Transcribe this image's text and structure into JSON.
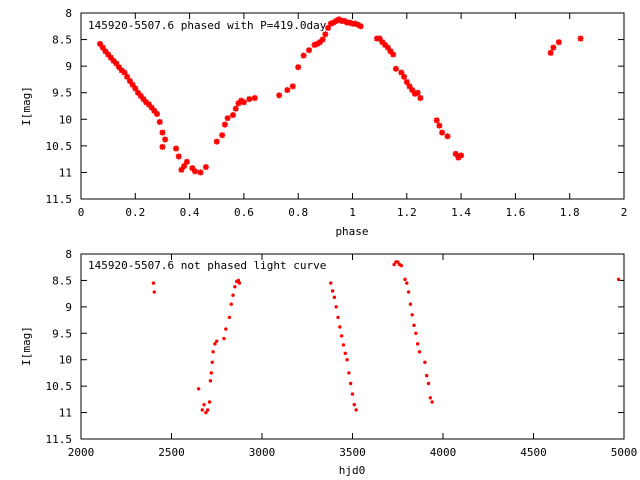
{
  "chart_data": [
    {
      "type": "scatter",
      "title": "145920-5507.6 phased with P=419.0day",
      "xlabel": "phase",
      "ylabel": "I[mag]",
      "xlim": [
        0,
        2
      ],
      "ylim": [
        8,
        11.5
      ],
      "y_inverted": true,
      "grid": false,
      "legend": "none",
      "marker": "star",
      "color": "#ff0000",
      "xticks": [
        "0",
        "0.2",
        "0.4",
        "0.6",
        "0.8",
        "1",
        "1.2",
        "1.4",
        "1.6",
        "1.8",
        "2"
      ],
      "yticks": [
        "8",
        "8.5",
        "9",
        "9.5",
        "10",
        "10.5",
        "11",
        "11.5"
      ],
      "x": [
        0.07,
        0.08,
        0.09,
        0.1,
        0.11,
        0.12,
        0.13,
        0.14,
        0.15,
        0.16,
        0.17,
        0.18,
        0.19,
        0.2,
        0.21,
        0.22,
        0.23,
        0.24,
        0.25,
        0.26,
        0.27,
        0.28,
        0.29,
        0.3,
        0.3,
        0.31,
        0.35,
        0.36,
        0.37,
        0.38,
        0.39,
        0.41,
        0.42,
        0.44,
        0.46,
        0.5,
        0.52,
        0.53,
        0.54,
        0.56,
        0.57,
        0.58,
        0.59,
        0.6,
        0.62,
        0.64,
        0.73,
        0.76,
        0.78,
        0.8,
        0.82,
        0.84,
        0.86,
        0.87,
        0.88,
        0.89,
        0.9,
        0.91,
        0.92,
        0.93,
        0.94,
        0.95,
        0.96,
        0.97,
        0.98,
        0.99,
        1.0,
        1.01,
        1.02,
        1.03,
        1.09,
        1.1,
        1.11,
        1.12,
        1.13,
        1.14,
        1.15,
        1.16,
        1.18,
        1.19,
        1.2,
        1.21,
        1.22,
        1.23,
        1.24,
        1.25,
        1.31,
        1.32,
        1.33,
        1.35,
        1.38,
        1.39,
        1.4,
        1.73,
        1.74,
        1.76,
        1.84
      ],
      "y": [
        8.58,
        8.65,
        8.72,
        8.78,
        8.84,
        8.9,
        8.95,
        9.02,
        9.08,
        9.12,
        9.2,
        9.28,
        9.35,
        9.42,
        9.5,
        9.56,
        9.62,
        9.68,
        9.72,
        9.78,
        9.84,
        9.9,
        10.05,
        10.25,
        10.52,
        10.38,
        10.55,
        10.7,
        10.95,
        10.88,
        10.8,
        10.92,
        10.98,
        11.0,
        10.9,
        10.42,
        10.3,
        10.1,
        9.98,
        9.92,
        9.8,
        9.7,
        9.65,
        9.68,
        9.62,
        9.6,
        9.55,
        9.45,
        9.38,
        9.02,
        8.8,
        8.7,
        8.6,
        8.58,
        8.55,
        8.5,
        8.4,
        8.28,
        8.2,
        8.18,
        8.15,
        8.12,
        8.15,
        8.15,
        8.18,
        8.18,
        8.2,
        8.2,
        8.22,
        8.25,
        8.48,
        8.48,
        8.55,
        8.6,
        8.65,
        8.72,
        8.78,
        9.05,
        9.12,
        9.2,
        9.3,
        9.38,
        9.45,
        9.52,
        9.5,
        9.6,
        10.02,
        10.12,
        10.25,
        10.32,
        10.65,
        10.72,
        10.68,
        8.75,
        8.65,
        8.55,
        8.48
      ]
    },
    {
      "type": "scatter",
      "title": "145920-5507.6 not phased light curve",
      "xlabel": "hjd0",
      "ylabel": "I[mag]",
      "xlim": [
        2000,
        5000
      ],
      "ylim": [
        8,
        11.5
      ],
      "y_inverted": true,
      "grid": false,
      "legend": "none",
      "marker": "dot",
      "color": "#ff0000",
      "xticks": [
        "2000",
        "2500",
        "3000",
        "3500",
        "4000",
        "4500",
        "5000"
      ],
      "yticks": [
        "8",
        "8.5",
        "9",
        "9.5",
        "10",
        "10.5",
        "11",
        "11.5"
      ],
      "x": [
        2400,
        2405,
        2650,
        2670,
        2680,
        2690,
        2700,
        2710,
        2715,
        2720,
        2725,
        2730,
        2740,
        2750,
        2790,
        2800,
        2820,
        2830,
        2840,
        2850,
        2860,
        2870,
        2875,
        3380,
        3390,
        3400,
        3410,
        3420,
        3430,
        3440,
        3450,
        3460,
        3470,
        3480,
        3490,
        3500,
        3510,
        3520,
        3730,
        3740,
        3750,
        3760,
        3770,
        3790,
        3800,
        3810,
        3820,
        3830,
        3840,
        3850,
        3860,
        3870,
        3900,
        3910,
        3920,
        3930,
        3940,
        4970
      ],
      "y": [
        8.55,
        8.72,
        10.55,
        10.95,
        10.85,
        11.0,
        10.95,
        10.8,
        10.4,
        10.25,
        10.05,
        9.85,
        9.7,
        9.65,
        9.6,
        9.42,
        9.2,
        8.95,
        8.78,
        8.62,
        8.52,
        8.5,
        8.55,
        8.55,
        8.7,
        8.82,
        9.0,
        9.2,
        9.38,
        9.55,
        9.72,
        9.88,
        10.0,
        10.25,
        10.45,
        10.65,
        10.85,
        10.95,
        8.2,
        8.15,
        8.15,
        8.2,
        8.22,
        8.48,
        8.55,
        8.72,
        8.95,
        9.15,
        9.35,
        9.5,
        9.7,
        9.85,
        10.05,
        10.3,
        10.45,
        10.72,
        10.8,
        8.48
      ]
    }
  ]
}
